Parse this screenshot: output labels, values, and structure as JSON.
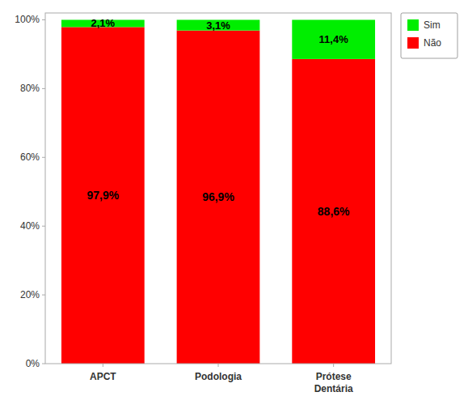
{
  "chart_data": {
    "type": "bar",
    "stacked": true,
    "categories": [
      "APCT",
      "Podologia",
      "Prótese\nDentária"
    ],
    "series": [
      {
        "name": "Não",
        "color": "#FF0000",
        "values": [
          97.9,
          96.9,
          88.6
        ],
        "value_labels": [
          "97,9%",
          "96,9%",
          "88,6%"
        ]
      },
      {
        "name": "Sim",
        "color": "#00EE00",
        "values": [
          2.1,
          3.1,
          11.4
        ],
        "value_labels": [
          "2,1%",
          "3,1%",
          "11,4%"
        ]
      }
    ],
    "ylim": [
      0,
      102
    ],
    "yticks": [
      {
        "value": 0,
        "label": "0%"
      },
      {
        "value": 20,
        "label": "20%"
      },
      {
        "value": 40,
        "label": "40%"
      },
      {
        "value": 60,
        "label": "60%"
      },
      {
        "value": 80,
        "label": "80%"
      },
      {
        "value": 100,
        "label": "100%"
      }
    ],
    "grid": false,
    "legend": "right",
    "data_labels": true
  }
}
